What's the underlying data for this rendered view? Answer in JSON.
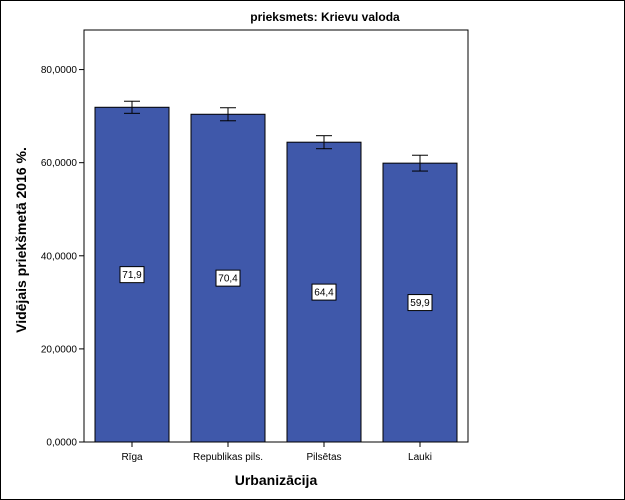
{
  "chart_data": {
    "type": "bar",
    "title": "prieksmets: Krievu valoda",
    "xlabel": "Urbanizācija",
    "ylabel": "Vidējais priekšmetā 2016 %.",
    "categories": [
      "Rīga",
      "Republikas pils.",
      "Pilsētas",
      "Lauki"
    ],
    "values": [
      71.9,
      70.4,
      64.4,
      59.9
    ],
    "data_labels": [
      "71,9",
      "70,4",
      "64,4",
      "59,9"
    ],
    "error_bars": [
      {
        "low": 70.6,
        "high": 73.2
      },
      {
        "low": 69.0,
        "high": 71.8
      },
      {
        "low": 63.0,
        "high": 65.8
      },
      {
        "low": 58.2,
        "high": 61.6
      }
    ],
    "ylim": [
      0,
      88.5
    ],
    "yticks": [
      0,
      20,
      40,
      60,
      80
    ],
    "ytick_labels": [
      "0,0000",
      "20,0000",
      "40,0000",
      "60,0000",
      "80,0000"
    ],
    "bar_color": "#3F58AA",
    "grid": false,
    "legend": "none"
  }
}
